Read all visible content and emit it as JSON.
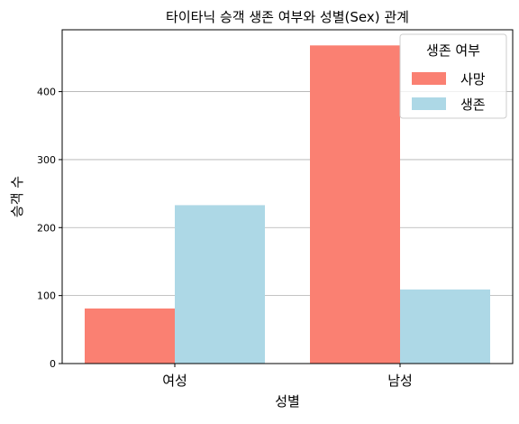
{
  "chart_data": {
    "type": "bar",
    "title": "타이타닉 승객 생존 여부와 성별(Sex) 관계",
    "xlabel": "성별",
    "ylabel": "승객 수",
    "categories": [
      "여성",
      "남성"
    ],
    "series": [
      {
        "name": "사망",
        "values": [
          81,
          468
        ],
        "color": "#fa8072"
      },
      {
        "name": "생존",
        "values": [
          233,
          109
        ],
        "color": "#add8e6"
      }
    ],
    "ylim": [
      0,
      491
    ],
    "yticks": [
      0,
      100,
      200,
      300,
      400
    ],
    "grid": "y",
    "legend": {
      "title": "생존 여부",
      "placement": "top-right"
    }
  }
}
